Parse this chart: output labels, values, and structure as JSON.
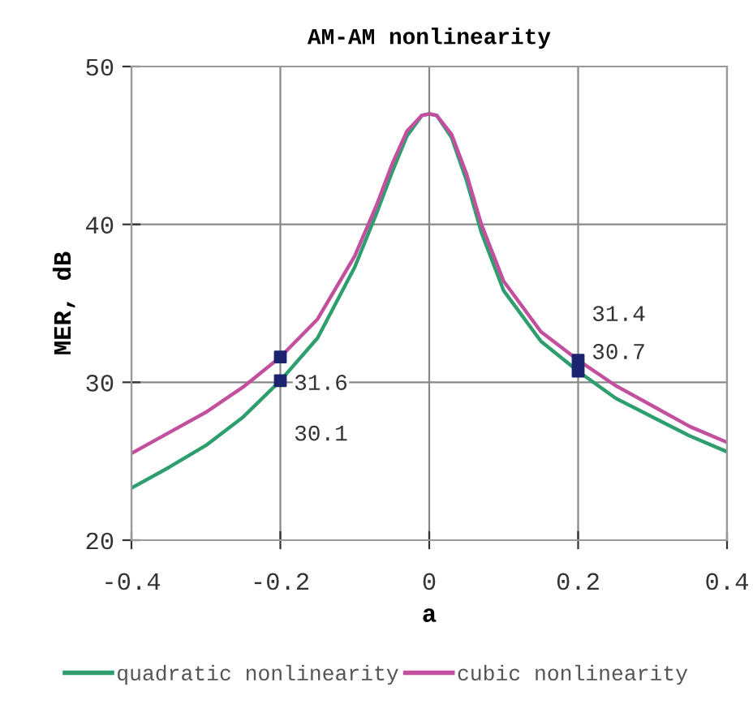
{
  "chart_data": {
    "type": "line",
    "title": "AM-AM nonlinearity",
    "xlabel": "a",
    "ylabel": "MER, dB",
    "xlim": [
      -0.4,
      0.4
    ],
    "xticks": [
      -0.4,
      -0.2,
      0,
      0.2,
      0.4
    ],
    "ylim": [
      20,
      50
    ],
    "yticks": [
      20,
      30,
      40,
      50
    ],
    "grid": true,
    "legend": "bottom",
    "series": [
      {
        "name": "quadratic nonlinearity",
        "color": "#2e9e6e",
        "x": [
          -0.4,
          -0.35,
          -0.3,
          -0.25,
          -0.2,
          -0.15,
          -0.1,
          -0.07,
          -0.05,
          -0.03,
          -0.01,
          0,
          0.01,
          0.03,
          0.05,
          0.07,
          0.1,
          0.15,
          0.2,
          0.25,
          0.3,
          0.35,
          0.4
        ],
        "values": [
          23.3,
          24.6,
          26.0,
          27.8,
          30.1,
          32.8,
          37.3,
          40.8,
          43.3,
          45.6,
          46.9,
          47,
          46.9,
          45.5,
          42.8,
          39.5,
          35.8,
          32.6,
          30.7,
          29.0,
          27.8,
          26.6,
          25.6
        ]
      },
      {
        "name": "cubic nonlinearity",
        "color": "#c2509e",
        "x": [
          -0.4,
          -0.35,
          -0.3,
          -0.25,
          -0.2,
          -0.15,
          -0.1,
          -0.07,
          -0.05,
          -0.03,
          -0.01,
          0,
          0.01,
          0.03,
          0.05,
          0.07,
          0.1,
          0.15,
          0.2,
          0.25,
          0.3,
          0.35,
          0.4
        ],
        "values": [
          25.5,
          26.8,
          28.1,
          29.7,
          31.6,
          34.0,
          38.0,
          41.3,
          43.8,
          45.9,
          46.9,
          47,
          46.9,
          45.7,
          43.2,
          40.0,
          36.4,
          33.2,
          31.4,
          29.8,
          28.5,
          27.2,
          26.2
        ]
      },
      {
        "type": "scatter",
        "marker": "square",
        "color": "#1c2470",
        "x": [
          -0.2,
          -0.2,
          0.2,
          0.2
        ],
        "values": [
          31.6,
          30.1,
          31.4,
          30.7
        ],
        "value_labels": [
          "31.6",
          "30.1",
          "31.4",
          "30.7"
        ]
      }
    ]
  }
}
